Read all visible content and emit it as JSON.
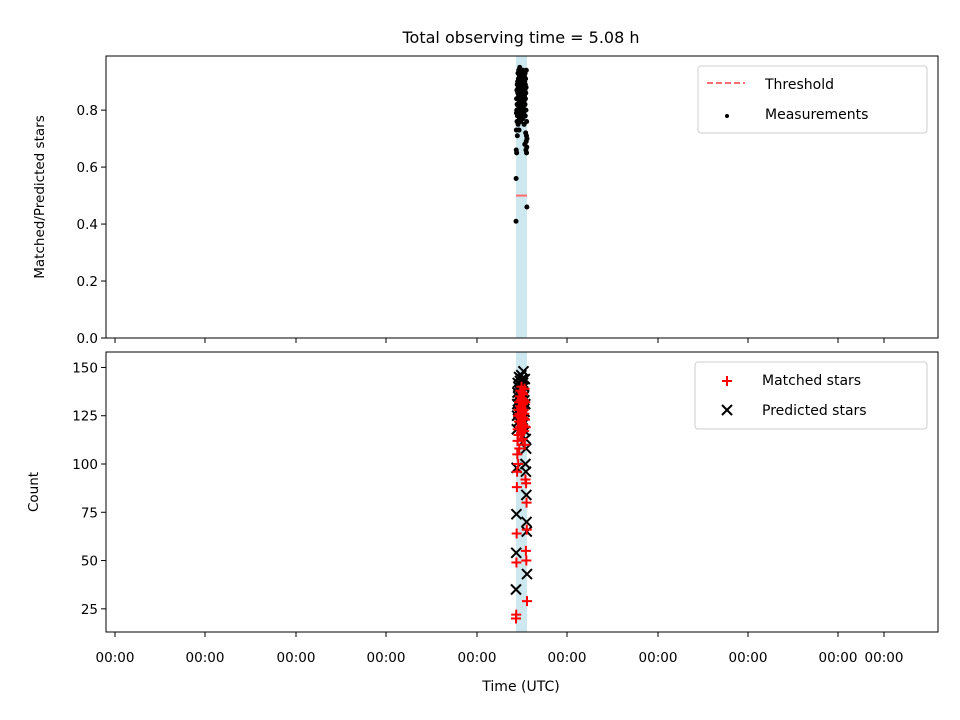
{
  "chart_data": {
    "title": "Total observing time = 5.08 h",
    "xlabel": "Time (UTC)",
    "x_tick_labels": [
      "00:00",
      "00:00",
      "00:00",
      "00:00",
      "00:00",
      "00:00",
      "00:00",
      "00:00",
      "00:00",
      "00:00"
    ],
    "shaded_band": {
      "color": "#add8e6"
    },
    "top": {
      "type": "scatter",
      "ylabel": "Matched/Predicted stars",
      "ylim": [
        0,
        0.99
      ],
      "yticks": [
        0.0,
        0.2,
        0.4,
        0.6,
        0.8
      ],
      "ytick_labels": [
        "0.0",
        "0.2",
        "0.4",
        "0.6",
        "0.8"
      ],
      "legend": {
        "placement": "upper right",
        "entries": [
          "Threshold",
          "Measurements"
        ]
      },
      "threshold": {
        "name": "Threshold",
        "value": 0.5,
        "color": "#ff6e6e"
      },
      "measurements": {
        "name": "Measurements",
        "color": "#000000",
        "x": [
          0.0,
          0.01,
          0.02,
          0.03,
          0.04,
          0.05,
          0.06,
          0.07,
          0.08,
          0.09,
          0.1,
          0.11,
          0.12,
          0.13,
          0.14,
          0.15,
          0.16,
          0.17,
          0.18,
          0.19,
          0.2,
          0.21,
          0.22,
          0.23,
          0.24,
          0.25,
          0.26,
          0.27,
          0.28,
          0.29,
          0.3,
          0.31,
          0.32,
          0.33,
          0.34,
          0.35,
          0.36,
          0.37,
          0.38,
          0.39,
          0.4,
          0.41,
          0.42,
          0.43,
          0.44,
          0.45,
          0.46,
          0.47,
          0.48,
          0.49,
          0.5,
          0.51,
          0.52,
          0.53,
          0.54,
          0.55,
          0.56,
          0.57,
          0.58,
          0.59,
          0.6,
          0.61,
          0.62,
          0.63,
          0.64,
          0.65,
          0.66,
          0.67,
          0.68,
          0.69,
          0.7,
          0.71,
          0.72,
          0.73,
          0.74,
          0.75,
          0.76,
          0.77,
          0.78,
          0.79,
          0.8,
          0.81,
          0.82,
          0.83,
          0.84,
          0.85,
          0.86,
          0.87,
          0.88,
          0.89,
          0.9,
          0.91,
          0.92,
          0.93,
          0.94,
          0.95,
          0.96,
          0.97,
          0.98,
          0.99,
          1.0
        ],
        "y": [
          0.41,
          0.56,
          0.66,
          0.73,
          0.79,
          0.84,
          0.65,
          0.8,
          0.87,
          0.76,
          0.82,
          0.89,
          0.71,
          0.78,
          0.84,
          0.9,
          0.86,
          0.8,
          0.93,
          0.75,
          0.88,
          0.82,
          0.91,
          0.78,
          0.85,
          0.94,
          0.81,
          0.87,
          0.73,
          0.89,
          0.83,
          0.92,
          0.77,
          0.86,
          0.95,
          0.8,
          0.88,
          0.84,
          0.91,
          0.79,
          0.86,
          0.93,
          0.82,
          0.9,
          0.76,
          0.85,
          0.92,
          0.81,
          0.88,
          0.94,
          0.83,
          0.87,
          0.91,
          0.78,
          0.86,
          0.93,
          0.82,
          0.89,
          0.8,
          0.92,
          0.85,
          0.88,
          0.77,
          0.9,
          0.84,
          0.94,
          0.81,
          0.87,
          0.91,
          0.79,
          0.86,
          0.93,
          0.83,
          0.89,
          0.75,
          0.88,
          0.92,
          0.8,
          0.85,
          0.9,
          0.68,
          0.87,
          0.82,
          0.93,
          0.78,
          0.89,
          0.84,
          0.91,
          0.72,
          0.86,
          0.66,
          0.8,
          0.88,
          0.69,
          0.94,
          0.71,
          0.65,
          0.76,
          0.67,
          0.46,
          0.7
        ]
      }
    },
    "bottom": {
      "type": "scatter",
      "ylabel": "Count",
      "ylim": [
        13,
        158
      ],
      "yticks": [
        25,
        50,
        75,
        100,
        125,
        150
      ],
      "ytick_labels": [
        "25",
        "50",
        "75",
        "100",
        "125",
        "150"
      ],
      "legend": {
        "placement": "upper right",
        "entries": [
          "Matched stars",
          "Predicted stars"
        ]
      },
      "series": [
        {
          "name": "Matched stars",
          "marker": "+",
          "color": "#ff0000",
          "x": [
            0.0,
            0.02,
            0.04,
            0.06,
            0.08,
            0.1,
            0.12,
            0.14,
            0.16,
            0.18,
            0.2,
            0.22,
            0.24,
            0.26,
            0.28,
            0.3,
            0.32,
            0.34,
            0.36,
            0.38,
            0.4,
            0.42,
            0.44,
            0.46,
            0.48,
            0.5,
            0.52,
            0.54,
            0.56,
            0.58,
            0.6,
            0.62,
            0.64,
            0.66,
            0.68,
            0.7,
            0.72,
            0.74,
            0.76,
            0.78,
            0.8,
            0.82,
            0.84,
            0.86,
            0.88,
            0.9,
            0.92,
            0.94,
            0.96,
            0.98,
            1.0
          ],
          "y": [
            20,
            22,
            49,
            64,
            88,
            96,
            105,
            112,
            118,
            125,
            100,
            115,
            128,
            122,
            132,
            108,
            126,
            135,
            119,
            130,
            138,
            124,
            133,
            116,
            129,
            140,
            121,
            134,
            127,
            137,
            113,
            131,
            124,
            136,
            120,
            128,
            133,
            117,
            126,
            139,
            110,
            123,
            132,
            92,
            119,
            55,
            90,
            50,
            80,
            66,
            29
          ]
        },
        {
          "name": "Predicted stars",
          "marker": "x",
          "color": "#000000",
          "x": [
            0.0,
            0.02,
            0.04,
            0.06,
            0.08,
            0.1,
            0.12,
            0.14,
            0.16,
            0.18,
            0.2,
            0.22,
            0.24,
            0.26,
            0.28,
            0.3,
            0.32,
            0.34,
            0.36,
            0.38,
            0.4,
            0.42,
            0.44,
            0.46,
            0.48,
            0.5,
            0.52,
            0.54,
            0.56,
            0.58,
            0.6,
            0.62,
            0.64,
            0.66,
            0.68,
            0.7,
            0.72,
            0.74,
            0.76,
            0.78,
            0.8,
            0.82,
            0.84,
            0.86,
            0.88,
            0.9,
            0.92,
            0.94,
            0.96,
            0.98,
            1.0
          ],
          "y": [
            35,
            54,
            74,
            98,
            118,
            125,
            131,
            137,
            142,
            128,
            135,
            140,
            122,
            133,
            145,
            127,
            138,
            130,
            143,
            124,
            136,
            141,
            129,
            134,
            146,
            126,
            139,
            132,
            144,
            123,
            137,
            130,
            142,
            128,
            148,
            135,
            121,
            140,
            133,
            127,
            144,
            117,
            131,
            100,
            113,
            96,
            108,
            84,
            70,
            65,
            43
          ]
        }
      ]
    }
  }
}
